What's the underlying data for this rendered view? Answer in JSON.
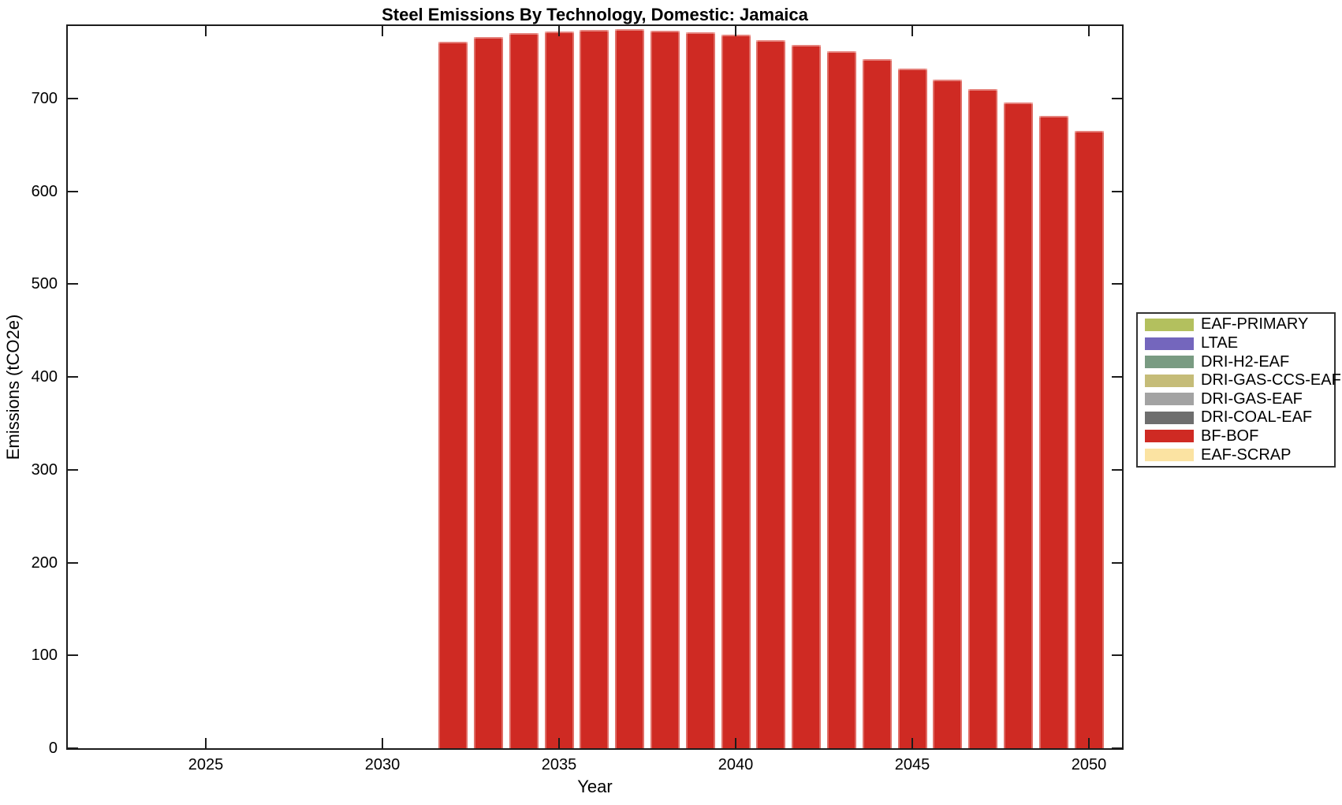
{
  "chart_data": {
    "type": "bar",
    "title": "Steel Emissions By Technology, Domestic: Jamaica",
    "xlabel": "Year",
    "ylabel": "Emissions (tCO2e)",
    "xlim": [
      2021,
      2051
    ],
    "ylim": [
      0,
      778
    ],
    "x_ticks": [
      2025,
      2030,
      2035,
      2040,
      2045,
      2050
    ],
    "y_ticks": [
      0,
      100,
      200,
      300,
      400,
      500,
      600,
      700
    ],
    "grid": false,
    "legend_position": "right-outside",
    "visible_series_name": "BF-BOF",
    "x": [
      2032,
      2033,
      2034,
      2035,
      2036,
      2037,
      2038,
      2039,
      2040,
      2041,
      2042,
      2043,
      2044,
      2045,
      2046,
      2047,
      2048,
      2049,
      2050
    ],
    "series": [
      {
        "name": "BF-BOF",
        "color": "#cf2a23",
        "values": [
          761,
          766,
          770,
          772,
          774,
          775,
          773,
          771,
          769,
          763,
          758,
          751,
          742,
          732,
          720,
          710,
          696,
          681,
          665
        ]
      }
    ],
    "legend": [
      {
        "label": "EAF-PRIMARY",
        "color": "#b3c05e"
      },
      {
        "label": "LTAE",
        "color": "#7466bd"
      },
      {
        "label": "DRI-H2-EAF",
        "color": "#799b82"
      },
      {
        "label": "DRI-GAS-CCS-EAF",
        "color": "#c5bc78"
      },
      {
        "label": "DRI-GAS-EAF",
        "color": "#a3a3a3"
      },
      {
        "label": "DRI-COAL-EAF",
        "color": "#6e6e6e"
      },
      {
        "label": "BF-BOF",
        "color": "#cf2a23"
      },
      {
        "label": "EAF-SCRAP",
        "color": "#fbe3a2"
      }
    ],
    "axis_color": "#1c1c1c",
    "background_color": "#ffffff"
  }
}
